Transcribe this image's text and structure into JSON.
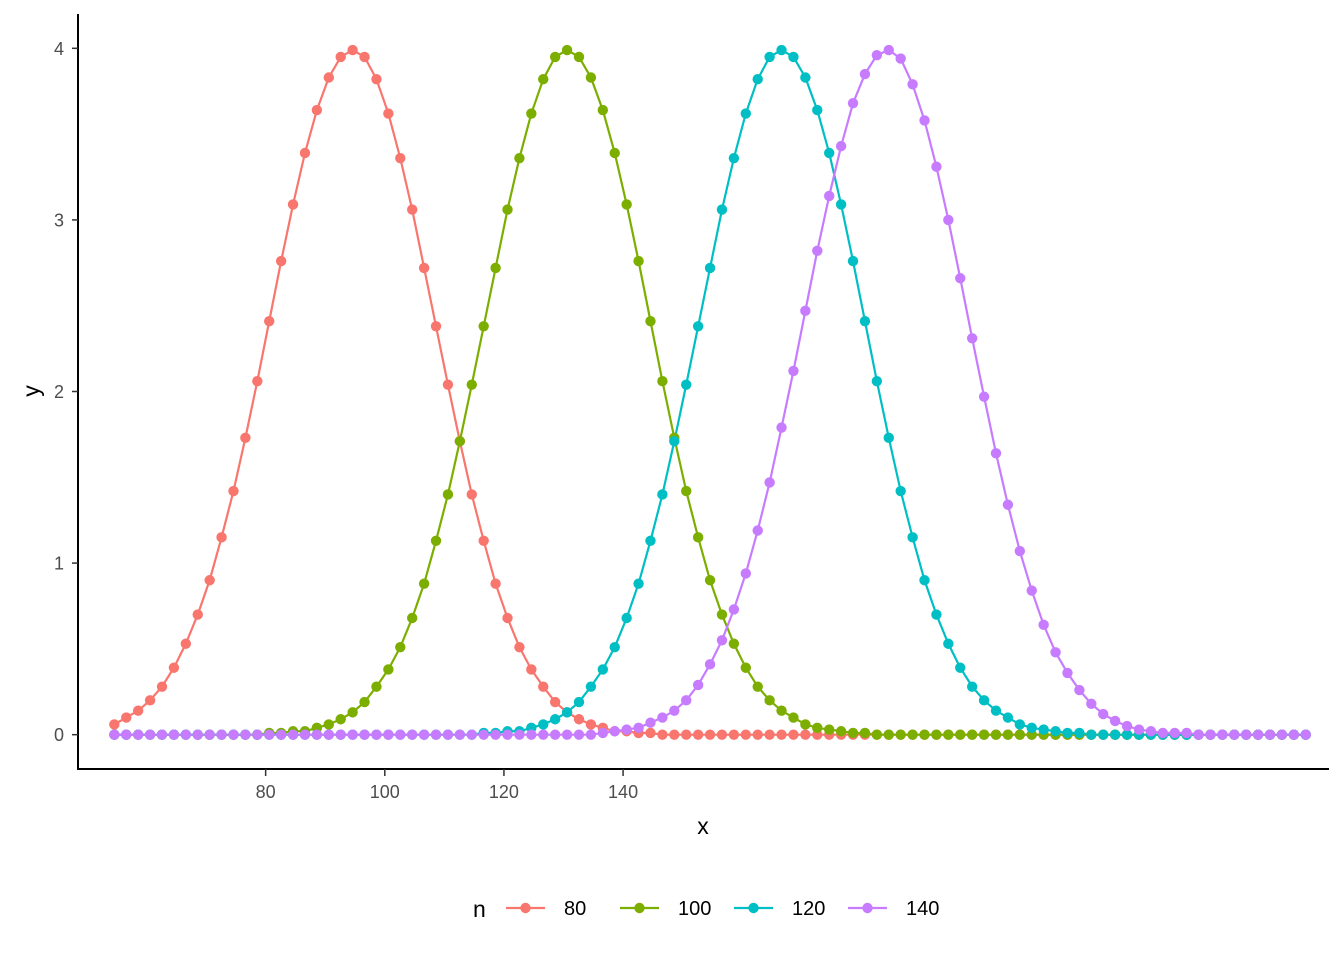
{
  "chart_data": {
    "type": "line",
    "xlabel": "x",
    "ylabel": "y",
    "xlim": [
      48.5,
      258.5
    ],
    "ylim": [
      -0.2,
      4.2
    ],
    "x_ticks": [
      80,
      100,
      120,
      140
    ],
    "y_ticks": [
      0,
      1,
      2,
      3,
      4
    ],
    "grid": false,
    "markers": true,
    "legend": {
      "title": "n",
      "position": "bottom"
    },
    "x": [
      54.6,
      56.6,
      58.6,
      60.6,
      62.6,
      64.6,
      66.6,
      68.6,
      70.6,
      72.6,
      74.6,
      76.6,
      78.6,
      80.6,
      82.6,
      84.6,
      86.6,
      88.6,
      90.6,
      92.6,
      94.6,
      96.6,
      98.6,
      100.6,
      102.6,
      104.6,
      106.6,
      108.6,
      110.6,
      112.6,
      114.6,
      116.6,
      118.6,
      120.6,
      122.6,
      124.6,
      126.6,
      128.6,
      130.6,
      132.6,
      134.6,
      136.6,
      138.6,
      140.6,
      142.6,
      144.6,
      146.6,
      148.6,
      150.6,
      152.6,
      154.6,
      156.6,
      158.6,
      160.6,
      162.6,
      164.6,
      166.6,
      168.6,
      170.6,
      172.6,
      174.6,
      176.6,
      178.6,
      180.6,
      182.6,
      184.6,
      186.6,
      188.6,
      190.6,
      192.6,
      194.6,
      196.6,
      198.6,
      200.6,
      202.6,
      204.6,
      206.6,
      208.6,
      210.6,
      212.6,
      214.6,
      216.6,
      218.6,
      220.6,
      222.6,
      224.6,
      226.6,
      228.6,
      230.6,
      232.6,
      234.6,
      236.6,
      238.6,
      240.6,
      242.6,
      244.6,
      246.6,
      248.6,
      250.6,
      252.6,
      254.6
    ],
    "series": [
      {
        "name": "80",
        "color": "#F8766D",
        "values": [
          0.06,
          0.1,
          0.14,
          0.2,
          0.28,
          0.39,
          0.53,
          0.7,
          0.9,
          1.15,
          1.42,
          1.73,
          2.06,
          2.41,
          2.76,
          3.09,
          3.39,
          3.64,
          3.83,
          3.95,
          3.99,
          3.95,
          3.82,
          3.62,
          3.36,
          3.06,
          2.72,
          2.38,
          2.04,
          1.71,
          1.4,
          1.13,
          0.88,
          0.68,
          0.51,
          0.38,
          0.28,
          0.19,
          0.13,
          0.09,
          0.06,
          0.04,
          0.02,
          0.02,
          0.01,
          0.01,
          0.0,
          0.0,
          0.0,
          0.0,
          0.0,
          0.0,
          0.0,
          0.0,
          0.0,
          0.0,
          0.0,
          0.0,
          0.0,
          0.0,
          0.0,
          0.0,
          0.0,
          0.0,
          0.0,
          0.0,
          0.0,
          0.0,
          0.0,
          0.0,
          0.0,
          0.0,
          0.0,
          0.0,
          0.0,
          0.0,
          0.0,
          0.0,
          0.0,
          0.0,
          0.0,
          0.0,
          0.0,
          0.0,
          0.0,
          0.0,
          0.0,
          0.0,
          0.0,
          0.0,
          0.0,
          0.0,
          0.0,
          0.0,
          0.0,
          0.0,
          0.0,
          0.0,
          0.0,
          0.0,
          0.0
        ]
      },
      {
        "name": "100",
        "color": "#7CAE00",
        "values": [
          0.0,
          0.0,
          0.0,
          0.0,
          0.0,
          0.0,
          0.0,
          0.0,
          0.0,
          0.0,
          0.0,
          0.0,
          0.0,
          0.01,
          0.01,
          0.02,
          0.02,
          0.04,
          0.06,
          0.09,
          0.13,
          0.19,
          0.28,
          0.38,
          0.51,
          0.68,
          0.88,
          1.13,
          1.4,
          1.71,
          2.04,
          2.38,
          2.72,
          3.06,
          3.36,
          3.62,
          3.82,
          3.95,
          3.99,
          3.95,
          3.83,
          3.64,
          3.39,
          3.09,
          2.76,
          2.41,
          2.06,
          1.73,
          1.42,
          1.15,
          0.9,
          0.7,
          0.53,
          0.39,
          0.28,
          0.2,
          0.14,
          0.1,
          0.06,
          0.04,
          0.03,
          0.02,
          0.01,
          0.01,
          0.0,
          0.0,
          0.0,
          0.0,
          0.0,
          0.0,
          0.0,
          0.0,
          0.0,
          0.0,
          0.0,
          0.0,
          0.0,
          0.0,
          0.0,
          0.0,
          0.0,
          0.0,
          0.0,
          0.0,
          0.0,
          0.0,
          0.0,
          0.0,
          0.0,
          0.0,
          0.0,
          0.0,
          0.0,
          0.0,
          0.0,
          0.0,
          0.0,
          0.0,
          0.0,
          0.0,
          0.0
        ]
      },
      {
        "name": "120",
        "color": "#00BFC4",
        "values": [
          0.0,
          0.0,
          0.0,
          0.0,
          0.0,
          0.0,
          0.0,
          0.0,
          0.0,
          0.0,
          0.0,
          0.0,
          0.0,
          0.0,
          0.0,
          0.0,
          0.0,
          0.0,
          0.0,
          0.0,
          0.0,
          0.0,
          0.0,
          0.0,
          0.0,
          0.0,
          0.0,
          0.0,
          0.0,
          0.0,
          0.0,
          0.01,
          0.01,
          0.02,
          0.02,
          0.04,
          0.06,
          0.09,
          0.13,
          0.19,
          0.28,
          0.38,
          0.51,
          0.68,
          0.88,
          1.13,
          1.4,
          1.71,
          2.04,
          2.38,
          2.72,
          3.06,
          3.36,
          3.62,
          3.82,
          3.95,
          3.99,
          3.95,
          3.83,
          3.64,
          3.39,
          3.09,
          2.76,
          2.41,
          2.06,
          1.73,
          1.42,
          1.15,
          0.9,
          0.7,
          0.53,
          0.39,
          0.28,
          0.2,
          0.14,
          0.1,
          0.06,
          0.04,
          0.03,
          0.02,
          0.01,
          0.01,
          0.0,
          0.0,
          0.0,
          0.0,
          0.0,
          0.0,
          0.0,
          0.0,
          0.0,
          0.0,
          0.0,
          0.0,
          0.0,
          0.0,
          0.0,
          0.0,
          0.0,
          0.0,
          0.0
        ]
      },
      {
        "name": "140",
        "color": "#C77CFF",
        "values": [
          0.0,
          0.0,
          0.0,
          0.0,
          0.0,
          0.0,
          0.0,
          0.0,
          0.0,
          0.0,
          0.0,
          0.0,
          0.0,
          0.0,
          0.0,
          0.0,
          0.0,
          0.0,
          0.0,
          0.0,
          0.0,
          0.0,
          0.0,
          0.0,
          0.0,
          0.0,
          0.0,
          0.0,
          0.0,
          0.0,
          0.0,
          0.0,
          0.0,
          0.0,
          0.0,
          0.0,
          0.0,
          0.0,
          0.0,
          0.0,
          0.0,
          0.01,
          0.02,
          0.03,
          0.04,
          0.07,
          0.1,
          0.14,
          0.2,
          0.29,
          0.41,
          0.55,
          0.73,
          0.94,
          1.19,
          1.47,
          1.79,
          2.12,
          2.47,
          2.82,
          3.14,
          3.43,
          3.68,
          3.85,
          3.96,
          3.99,
          3.94,
          3.79,
          3.58,
          3.31,
          3.0,
          2.66,
          2.31,
          1.97,
          1.64,
          1.34,
          1.07,
          0.84,
          0.64,
          0.48,
          0.36,
          0.26,
          0.18,
          0.12,
          0.08,
          0.05,
          0.03,
          0.02,
          0.01,
          0.01,
          0.01,
          0.0,
          0.0,
          0.0,
          0.0,
          0.0,
          0.0,
          0.0,
          0.0,
          0.0,
          0.0
        ]
      }
    ]
  }
}
